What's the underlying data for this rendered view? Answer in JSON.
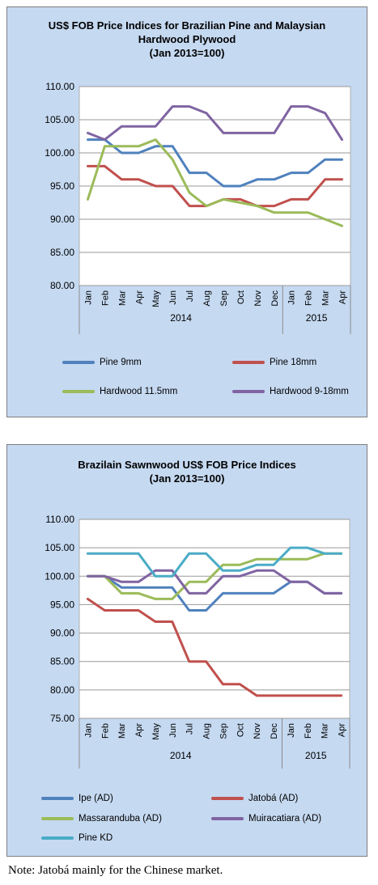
{
  "chart_data": [
    {
      "type": "line",
      "title_lines": [
        "US$ FOB Price Indices for Brazilian Pine and Malaysian",
        "Hardwood Plywood",
        "(Jan 2013=100)"
      ],
      "categories": [
        "Jan",
        "Feb",
        "Mar",
        "Apr",
        "May",
        "Jun",
        "Jul",
        "Aug",
        "Sep",
        "Oct",
        "Nov",
        "Dec",
        "Jan",
        "Feb",
        "Mar",
        "Apr"
      ],
      "year_groups": [
        {
          "label": "2014",
          "count": 12
        },
        {
          "label": "2015",
          "count": 4
        }
      ],
      "y_ticks": [
        "110.00",
        "105.00",
        "100.00",
        "95.00",
        "90.00",
        "85.00",
        "80.00"
      ],
      "ylim": [
        80,
        110
      ],
      "grid": true,
      "legend_position": "bottom",
      "series": [
        {
          "name": "Pine 9mm",
          "color": "#4f81bd",
          "values": [
            102,
            102,
            100,
            100,
            101,
            101,
            97,
            97,
            95,
            95,
            96,
            96,
            97,
            97,
            99,
            99
          ]
        },
        {
          "name": "Pine 18mm",
          "color": "#c0504d",
          "values": [
            98,
            98,
            96,
            96,
            95,
            95,
            92,
            92,
            93,
            93,
            92,
            92,
            93,
            93,
            96,
            96
          ]
        },
        {
          "name": "Hardwood 11.5mm",
          "color": "#9bbb59",
          "values": [
            93,
            101,
            101,
            101,
            102,
            99,
            94,
            92,
            93,
            92.5,
            92,
            91,
            91,
            91,
            90,
            89
          ]
        },
        {
          "name": "Hardwood 9-18mm",
          "color": "#8064a2",
          "values": [
            103,
            102,
            104,
            104,
            104,
            107,
            107,
            106,
            103,
            103,
            103,
            103,
            107,
            107,
            106,
            102
          ]
        }
      ]
    },
    {
      "type": "line",
      "title_lines": [
        "Brazilain Sawnwood US$ FOB Price Indices",
        "(Jan 2013=100)"
      ],
      "categories": [
        "Jan",
        "Feb",
        "Mar",
        "Apr",
        "May",
        "Jun",
        "Jul",
        "Aug",
        "Sep",
        "Oct",
        "Nov",
        "Dec",
        "Jan",
        "Feb",
        "Mar",
        "Apr"
      ],
      "year_groups": [
        {
          "label": "2014",
          "count": 12
        },
        {
          "label": "2015",
          "count": 4
        }
      ],
      "y_ticks": [
        "110.00",
        "105.00",
        "100.00",
        "95.00",
        "90.00",
        "85.00",
        "80.00",
        "75.00"
      ],
      "ylim": [
        75,
        110
      ],
      "grid": true,
      "legend_position": "bottom",
      "series": [
        {
          "name": "Ipe (AD)",
          "color": "#4f81bd",
          "values": [
            100,
            100,
            98,
            98,
            98,
            98,
            94,
            94,
            97,
            97,
            97,
            97,
            99,
            99,
            97,
            97
          ]
        },
        {
          "name": "Jatobá (AD)",
          "color": "#c0504d",
          "values": [
            96,
            94,
            94,
            94,
            92,
            92,
            85,
            85,
            81,
            81,
            79,
            79,
            79,
            79,
            79,
            79
          ]
        },
        {
          "name": "Massaranduba (AD)",
          "color": "#9bbb59",
          "values": [
            100,
            100,
            97,
            97,
            96,
            96,
            99,
            99,
            102,
            102,
            103,
            103,
            103,
            103,
            104,
            104
          ]
        },
        {
          "name": "Muiracatiara (AD)",
          "color": "#8064a2",
          "values": [
            100,
            100,
            99,
            99,
            101,
            101,
            97,
            97,
            100,
            100,
            101,
            101,
            99,
            99,
            97,
            97
          ]
        },
        {
          "name": "Pine KD",
          "color": "#4bacc6",
          "values": [
            104,
            104,
            104,
            104,
            100,
            100,
            104,
            104,
            101,
            101,
            102,
            102,
            105,
            105,
            104,
            104
          ]
        }
      ]
    }
  ],
  "note": "Note: Jatobá mainly for the Chinese market."
}
